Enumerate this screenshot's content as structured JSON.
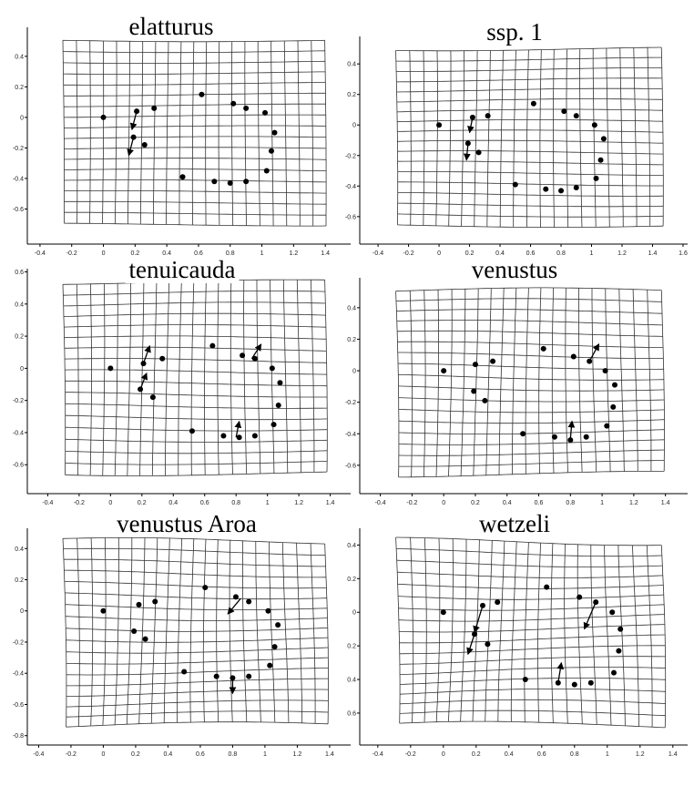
{
  "chart_data": [
    {
      "type": "scatter",
      "title": "elatturus",
      "x": [
        0,
        0.21,
        0.32,
        0.19,
        0.26,
        0.62,
        0.82,
        0.9,
        1.02,
        1.08,
        1.06,
        1.03,
        0.9,
        0.8,
        0.7,
        0.5
      ],
      "y": [
        0,
        0.04,
        0.06,
        -0.13,
        -0.18,
        0.15,
        0.09,
        0.06,
        0.03,
        -0.1,
        -0.22,
        -0.35,
        -0.42,
        -0.43,
        -0.42,
        -0.39
      ],
      "vectors": [
        [
          0.21,
          0.04,
          0.18,
          -0.08
        ],
        [
          0.19,
          -0.13,
          0.16,
          -0.25
        ]
      ],
      "xlim": [
        -0.48,
        1.56
      ],
      "ylim": [
        -0.83,
        0.59
      ],
      "xticks": [
        -0.4,
        -0.2,
        0,
        0.2,
        0.4,
        0.6,
        0.8,
        1,
        1.2,
        1.4
      ],
      "yticks": [
        0.4,
        0.2,
        0,
        -0.2,
        -0.4,
        -0.6
      ]
    },
    {
      "type": "scatter",
      "title": "ssp. 1",
      "x": [
        0,
        0.22,
        0.32,
        0.19,
        0.26,
        0.62,
        0.82,
        0.9,
        1.02,
        1.08,
        1.06,
        1.03,
        0.9,
        0.8,
        0.7,
        0.5
      ],
      "y": [
        0,
        0.05,
        0.06,
        -0.12,
        -0.18,
        0.14,
        0.09,
        0.06,
        0,
        -0.09,
        -0.23,
        -0.35,
        -0.41,
        -0.43,
        -0.42,
        -0.39
      ],
      "vectors": [
        [
          0.22,
          0.05,
          0.2,
          -0.05
        ],
        [
          0.19,
          -0.12,
          0.18,
          -0.23
        ]
      ],
      "xlim": [
        -0.52,
        1.63
      ],
      "ylim": [
        -0.78,
        0.58
      ],
      "xticks": [
        -0.4,
        -0.2,
        0,
        0.2,
        0.4,
        0.6,
        0.8,
        1,
        1.2,
        1.4,
        1.6
      ],
      "yticks": [
        0.4,
        0.2,
        0,
        -0.2,
        -0.4,
        -0.6
      ]
    },
    {
      "type": "scatter",
      "title": "tenuicauda",
      "x": [
        0,
        0.21,
        0.33,
        0.19,
        0.27,
        0.65,
        0.84,
        0.92,
        1.03,
        1.08,
        1.07,
        1.04,
        0.92,
        0.82,
        0.72,
        0.52
      ],
      "y": [
        0,
        0.03,
        0.06,
        -0.13,
        -0.18,
        0.14,
        0.08,
        0.06,
        0,
        -0.09,
        -0.23,
        -0.35,
        -0.42,
        -0.43,
        -0.42,
        -0.39
      ],
      "vectors": [
        [
          0.19,
          -0.13,
          0.23,
          -0.03
        ],
        [
          0.21,
          0.03,
          0.25,
          0.14
        ],
        [
          0.9,
          0.06,
          0.96,
          0.15
        ],
        [
          0.8,
          -0.43,
          0.82,
          -0.33
        ]
      ],
      "xlim": [
        -0.53,
        1.53
      ],
      "ylim": [
        -0.78,
        0.62
      ],
      "xticks": [
        -0.4,
        -0.2,
        0,
        0.2,
        0.4,
        0.6,
        0.8,
        1,
        1.2,
        1.4
      ],
      "yticks": [
        0.6,
        0.4,
        0.2,
        0,
        -0.2,
        -0.4,
        -0.6
      ]
    },
    {
      "type": "scatter",
      "title": "venustus",
      "x": [
        0,
        0.2,
        0.31,
        0.19,
        0.26,
        0.63,
        0.82,
        0.92,
        1.02,
        1.08,
        1.07,
        1.03,
        0.9,
        0.8,
        0.7,
        0.5
      ],
      "y": [
        0,
        0.04,
        0.06,
        -0.13,
        -0.19,
        0.14,
        0.09,
        0.06,
        0,
        -0.09,
        -0.23,
        -0.35,
        -0.42,
        -0.44,
        -0.42,
        -0.4
      ],
      "vectors": [
        [
          0.92,
          0.06,
          0.98,
          0.17
        ],
        [
          0.8,
          -0.43,
          0.81,
          -0.32
        ]
      ],
      "xlim": [
        -0.53,
        1.54
      ],
      "ylim": [
        -0.78,
        0.59
      ],
      "xticks": [
        -0.4,
        -0.2,
        0,
        0.2,
        0.4,
        0.6,
        0.8,
        1,
        1.2,
        1.4
      ],
      "yticks": [
        0.4,
        0.2,
        0,
        -0.2,
        -0.4,
        -0.6
      ]
    },
    {
      "type": "scatter",
      "title": "venustus Aroa",
      "x": [
        0,
        0.22,
        0.32,
        0.19,
        0.26,
        0.63,
        0.82,
        0.9,
        1.02,
        1.08,
        1.06,
        1.03,
        0.9,
        0.8,
        0.7,
        0.5
      ],
      "y": [
        0,
        0.04,
        0.06,
        -0.13,
        -0.18,
        0.15,
        0.09,
        0.06,
        0,
        -0.09,
        -0.23,
        -0.35,
        -0.42,
        -0.43,
        -0.42,
        -0.39
      ],
      "vectors": [
        [
          0.85,
          0.08,
          0.77,
          -0.02
        ],
        [
          0.8,
          -0.43,
          0.8,
          -0.53
        ]
      ],
      "xlim": [
        -0.47,
        1.53
      ],
      "ylim": [
        -0.86,
        0.53
      ],
      "xticks": [
        -0.4,
        -0.2,
        0,
        0.2,
        0.4,
        0.6,
        0.8,
        1,
        1.2,
        1.4
      ],
      "yticks": [
        0.4,
        0.2,
        0,
        -0.2,
        -0.4,
        -0.6,
        -0.8
      ]
    },
    {
      "type": "scatter",
      "title": "wetzeli",
      "y_inverted": true,
      "x": [
        0,
        0.24,
        0.33,
        0.19,
        0.27,
        0.63,
        0.83,
        0.93,
        1.03,
        1.08,
        1.07,
        1.04,
        0.9,
        0.8,
        0.7,
        0.5
      ],
      "y": [
        0,
        -0.04,
        -0.06,
        0.13,
        0.19,
        -0.15,
        -0.09,
        -0.06,
        0,
        0.1,
        0.23,
        0.36,
        0.42,
        0.43,
        0.42,
        0.4
      ],
      "vectors": [
        [
          0.24,
          -0.04,
          0.19,
          0.12
        ],
        [
          0.19,
          0.13,
          0.15,
          0.25
        ],
        [
          0.93,
          -0.06,
          0.86,
          0.1
        ],
        [
          0.7,
          0.42,
          0.72,
          0.3
        ]
      ],
      "xlim": [
        -0.51,
        1.49
      ],
      "ylim": [
        -0.5,
        0.79
      ],
      "xticks": [
        -0.4,
        -0.2,
        0,
        0.2,
        0.4,
        0.6,
        0.8,
        1,
        1.2,
        1.4
      ],
      "yticks": [
        {
          "value": -0.4,
          "label": "0.4"
        },
        {
          "value": -0.2,
          "label": "0.2"
        },
        0,
        0.2,
        0.4,
        0.6
      ]
    }
  ]
}
